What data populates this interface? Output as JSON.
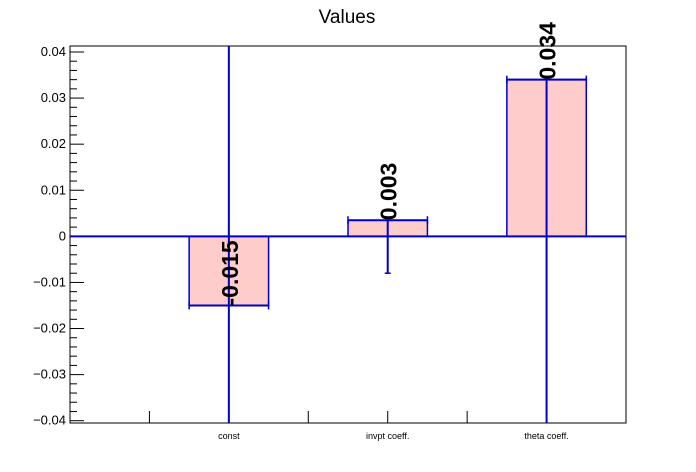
{
  "chart_data": {
    "type": "bar",
    "title": "Values",
    "categories": [
      "const",
      "invpt coeff.",
      "theta coeff."
    ],
    "values": [
      -0.015,
      0.0035,
      0.034
    ],
    "value_labels": [
      "-0.015",
      "0.003",
      "0.034"
    ],
    "error_low": [
      -0.045,
      -0.008,
      -0.045
    ],
    "error_high": [
      0.045,
      0.0035,
      0.034
    ],
    "ylim": [
      -0.0405,
      0.0413
    ],
    "yticks": [
      -0.04,
      -0.03,
      -0.02,
      -0.01,
      0,
      0.01,
      0.02,
      0.03,
      0.04
    ],
    "ytick_labels": [
      "−0.04",
      "−0.03",
      "−0.02",
      "−0.01",
      "0",
      "0.01",
      "0.02",
      "0.03",
      "0.04"
    ],
    "xlabel": "",
    "ylabel": "",
    "grid": false,
    "legend": "none",
    "colors": {
      "bar_fill": "#ffcccc",
      "bar_edge": "#0000cc",
      "error_bar": "#0000cc",
      "zero_line": "#0000cc",
      "axis": "#000000"
    }
  }
}
